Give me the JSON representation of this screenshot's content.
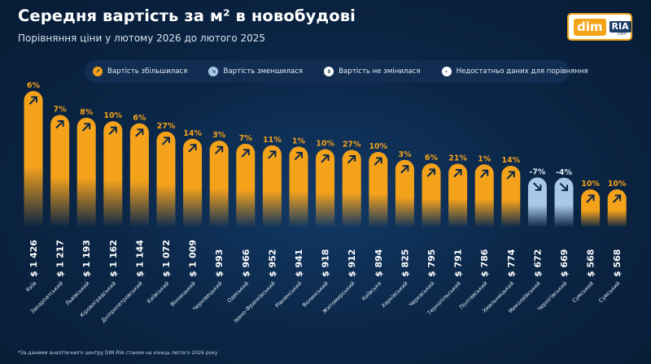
{
  "header": {
    "title": "Середня вартість за м² в новобудові",
    "subtitle": "Порівняння ціни у лютому 2026 до лютого 2025"
  },
  "logo": {
    "dim": "dim",
    "ria": "RIA",
    "com": ".com"
  },
  "legend": {
    "items": [
      {
        "label": "Вартість збільшилася",
        "icon": "arrow-up-right-icon",
        "glyph": "↗",
        "color": "#f5a21b"
      },
      {
        "label": "Вартість зменшилася",
        "icon": "arrow-down-right-icon",
        "glyph": "↘",
        "color": "#a9c7e6"
      },
      {
        "label": "Вартість не змінилася",
        "icon": "pause-icon",
        "glyph": "॥",
        "color": "#ffffff"
      },
      {
        "label": "Недостатньо даних для порівняння",
        "icon": "minus-icon",
        "glyph": "–",
        "color": "#ffffff"
      }
    ]
  },
  "footnote": "*За даними аналітичного центру DIM.RIA станом на кінець лютого 2026 року",
  "colors": {
    "increase": "#f5a21b",
    "decrease": "#a9c7e6",
    "label_increase": "#f5a21b",
    "label_decrease": "#dbe7f5"
  },
  "chart_data": {
    "type": "bar",
    "unit_prefix": "$",
    "categories": [
      "Київ",
      "Закарпатський",
      "Львівський",
      "Кіровоградський",
      "Дніпропетровський",
      "Київський",
      "Вінницький",
      "Чернівецький",
      "Одеський",
      "Івано-Франківський",
      "Рівненський",
      "Волинський",
      "Житомирський",
      "Київська",
      "Харківський",
      "Черкаський",
      "Тернопільський",
      "Полтавський",
      "Хмельницький",
      "Миколаївський",
      "Чернігівський",
      "Сумський",
      "Сумський"
    ],
    "values": [
      1426,
      1217,
      1193,
      1162,
      1144,
      1072,
      1009,
      993,
      966,
      952,
      941,
      918,
      912,
      894,
      825,
      795,
      791,
      786,
      774,
      672,
      669,
      568,
      568
    ],
    "value_labels": [
      "$ 1 426",
      "$ 1 217",
      "$ 1 193",
      "$ 1 162",
      "$ 1 144",
      "$ 1 072",
      "$ 1 009",
      "$ 993",
      "$ 966",
      "$ 952",
      "$ 941",
      "$ 918",
      "$ 912",
      "$ 894",
      "$ 825",
      "$ 795",
      "$ 791",
      "$ 786",
      "$ 774",
      "$ 672",
      "$ 669",
      "$ 568",
      "$ 568"
    ],
    "change_labels": [
      "6%",
      "7%",
      "8%",
      "10%",
      "6%",
      "27%",
      "14%",
      "3%",
      "7%",
      "11%",
      "1%",
      "10%",
      "27%",
      "10%",
      "3%",
      "6%",
      "21%",
      "1%",
      "14%",
      "-7%",
      "-4%",
      "10%",
      "10%"
    ],
    "directions": [
      "up",
      "up",
      "up",
      "up",
      "up",
      "up",
      "up",
      "up",
      "up",
      "up",
      "up",
      "up",
      "up",
      "up",
      "up",
      "up",
      "up",
      "up",
      "up",
      "down",
      "down",
      "up",
      "up"
    ]
  }
}
